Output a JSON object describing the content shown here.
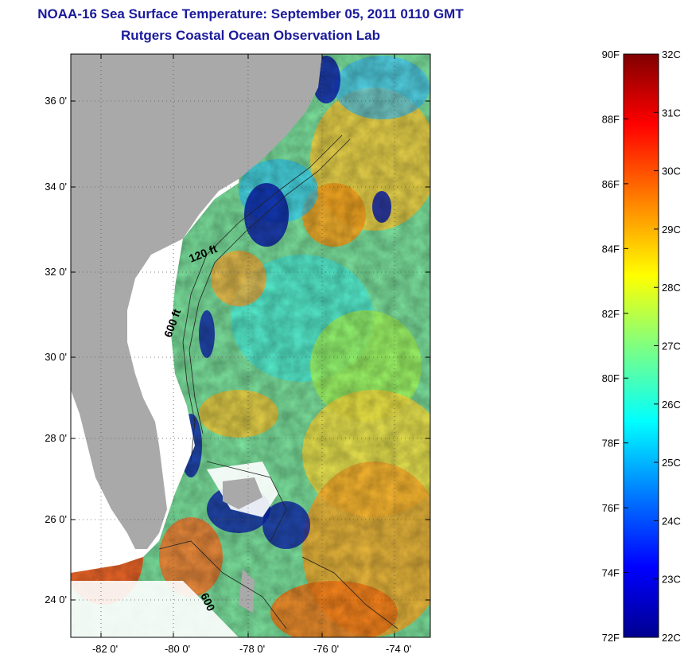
{
  "title": "NOAA-16 Sea Surface Temperature:  September 05, 2011 0110 GMT",
  "subtitle": "Rutgers Coastal Ocean Observation Lab",
  "map": {
    "lat_ticks": [
      "36 0'",
      "34 0'",
      "32 0'",
      "30 0'",
      "28 0'",
      "26 0'",
      "24 0'"
    ],
    "lon_ticks": [
      "-82 0'",
      "-80 0'",
      "-78 0'",
      "-76 0'",
      "-74 0'"
    ],
    "contour_labels": [
      "120 ft",
      "600 ft",
      "600"
    ],
    "land_color": "#a9a9a9",
    "no_data_color": "#ffffff"
  },
  "colorbar": {
    "fahrenheit": [
      "90F",
      "88F",
      "86F",
      "84F",
      "82F",
      "80F",
      "78F",
      "76F",
      "74F",
      "72F"
    ],
    "celsius": [
      "32C",
      "31C",
      "30C",
      "29C",
      "28C",
      "27C",
      "26C",
      "25C",
      "24C",
      "23C",
      "22C"
    ],
    "colors": [
      "#00008f",
      "#0000ff",
      "#0080ff",
      "#00ffff",
      "#80ff80",
      "#ffff00",
      "#ff8000",
      "#ff0000",
      "#800000"
    ]
  }
}
